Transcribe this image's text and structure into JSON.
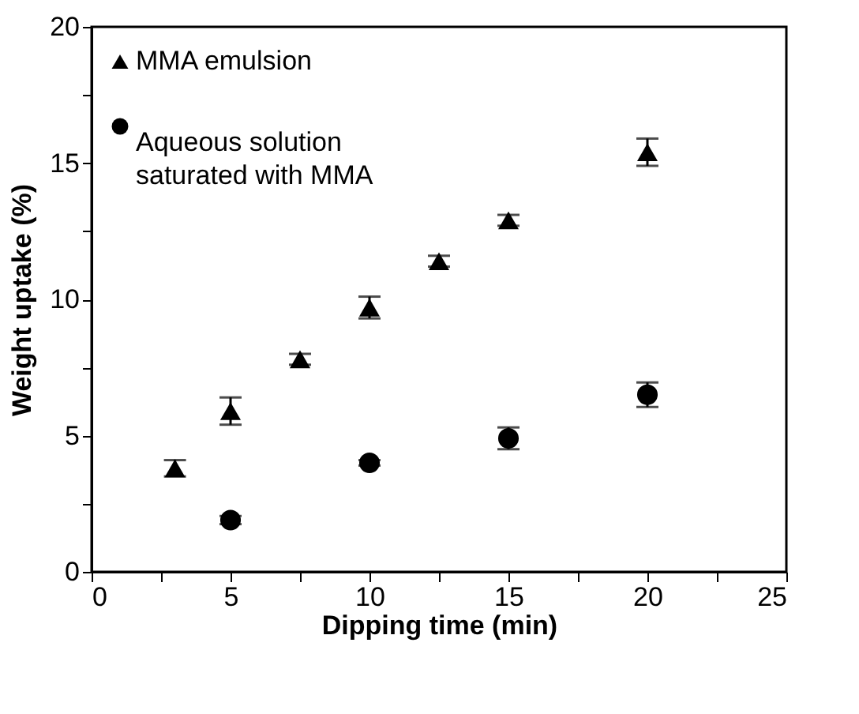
{
  "chart_data": {
    "type": "scatter",
    "xlabel": "Dipping time (min)",
    "ylabel": "Weight uptake (%)",
    "xlim": [
      0,
      25
    ],
    "xticks": [
      0,
      {
        "value": 2.5,
        "label": null
      },
      5,
      {
        "value": 7.5,
        "label": null
      },
      10,
      {
        "value": 12.5,
        "label": null
      },
      15,
      {
        "value": 17.5,
        "label": null
      },
      20,
      {
        "value": 22.5,
        "label": null
      },
      25
    ],
    "ylim": [
      0,
      20
    ],
    "yticks": [
      0,
      {
        "value": 2.5,
        "label": null
      },
      5,
      {
        "value": 7.5,
        "label": null
      },
      10,
      {
        "value": 12.5,
        "label": null
      },
      15,
      {
        "value": 17.5,
        "label": null
      },
      20
    ],
    "grid": false,
    "legend": "top left",
    "series": [
      {
        "name": "MMA emulsion",
        "color": "#000000",
        "marker": "triangle",
        "x": [
          3,
          5,
          7.5,
          10,
          12.5,
          15,
          20
        ],
        "values": [
          3.8,
          5.9,
          7.8,
          9.7,
          11.4,
          12.9,
          15.4
        ],
        "errors": [
          0.3,
          0.5,
          0.2,
          0.4,
          0.2,
          0.2,
          0.5
        ]
      },
      {
        "name": "Aqueous solution saturated with MMA",
        "color": "#000000",
        "marker": "circle",
        "x": [
          5,
          10,
          15,
          20
        ],
        "values": [
          1.9,
          4.0,
          4.9,
          6.5
        ],
        "errors": [
          0.15,
          0.1,
          0.4,
          0.45
        ]
      }
    ]
  }
}
